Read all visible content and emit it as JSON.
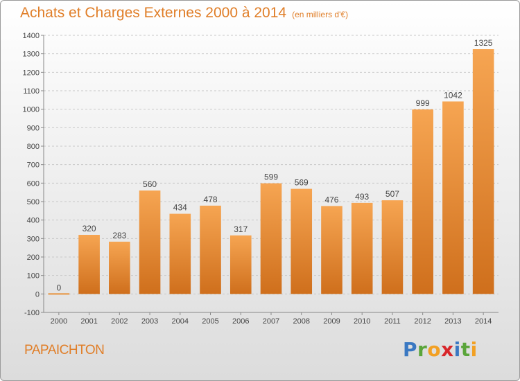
{
  "title": "Achats et Charges Externes 2000 à 2014",
  "subtitle": "(en milliers d'€)",
  "commune": "PAPAICHTON",
  "brand": {
    "letters": [
      "P",
      "r",
      "o",
      "x",
      "i",
      "t",
      "i"
    ],
    "colors": [
      "#3a78c2",
      "#5aa53a",
      "#f2a023",
      "#d8262a",
      "#3a78c2",
      "#5aa53a",
      "#f2a023"
    ]
  },
  "chart_data": {
    "type": "bar",
    "title": "Achats et Charges Externes 2000 à 2014",
    "subtitle": "(en milliers d'€)",
    "categories": [
      "2000",
      "2001",
      "2002",
      "2003",
      "2004",
      "2005",
      "2006",
      "2007",
      "2008",
      "2009",
      "2010",
      "2011",
      "2012",
      "2013",
      "2014"
    ],
    "values": [
      0,
      320,
      283,
      560,
      434,
      478,
      317,
      599,
      569,
      476,
      493,
      507,
      999,
      1042,
      1325
    ],
    "data_labels": [
      "0",
      "320",
      "283",
      "560",
      "434",
      "478",
      "317",
      "599",
      "569",
      "476",
      "493",
      "507",
      "999",
      "1042",
      "1325"
    ],
    "ylim": [
      -100,
      1400
    ],
    "yticks": [
      -100,
      0,
      100,
      200,
      300,
      400,
      500,
      600,
      700,
      800,
      900,
      1000,
      1100,
      1200,
      1300,
      1400
    ],
    "ytick_labels": [
      "-100",
      "0",
      "100",
      "200",
      "300",
      "400",
      "500",
      "600",
      "700",
      "800",
      "900",
      "1000",
      "1100",
      "1200",
      "1300",
      "1400"
    ],
    "grid": "horizontal dashed",
    "xlabel": "",
    "ylabel": "",
    "bar_color": "#f0a050"
  }
}
